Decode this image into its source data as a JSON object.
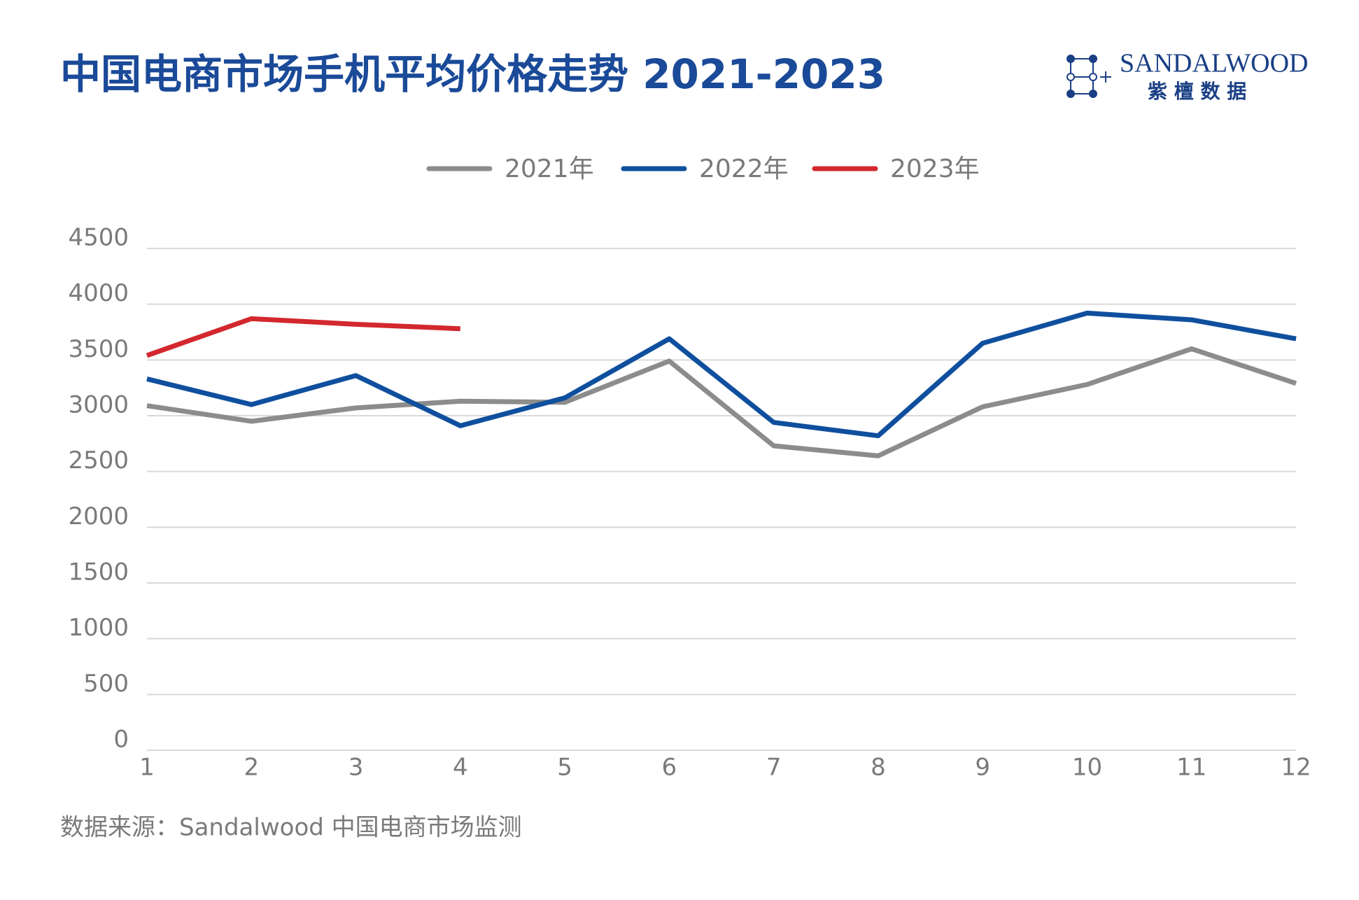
{
  "chart_data": {
    "type": "line",
    "title": "中国电商市场手机平均价格走势 2021-2023",
    "logo": {
      "name": "SANDALWOOD",
      "subtitle": "紫 檀 数 据"
    },
    "source": "数据来源：Sandalwood 中国电商市场监测",
    "categories": [
      "1",
      "2",
      "3",
      "4",
      "5",
      "6",
      "7",
      "8",
      "9",
      "10",
      "11",
      "12"
    ],
    "series": [
      {
        "name": "2021年",
        "color": "#8c8c8c",
        "values": [
          3090,
          2950,
          3070,
          3130,
          3120,
          3490,
          2730,
          2640,
          3080,
          3280,
          3600,
          3290
        ]
      },
      {
        "name": "2022年",
        "color": "#0f4f9e",
        "values": [
          3330,
          3100,
          3360,
          2910,
          3160,
          3690,
          2940,
          2820,
          3650,
          3920,
          3860,
          3690
        ]
      },
      {
        "name": "2023年",
        "color": "#d3282e",
        "values": [
          3540,
          3870,
          3820,
          3780,
          null,
          null,
          null,
          null,
          null,
          null,
          null,
          null
        ]
      }
    ],
    "ylim": [
      0,
      4500
    ],
    "yticks": [
      0,
      500,
      1000,
      1500,
      2000,
      2500,
      3000,
      3500,
      4000,
      4500
    ],
    "grid": true,
    "legend": "top"
  }
}
